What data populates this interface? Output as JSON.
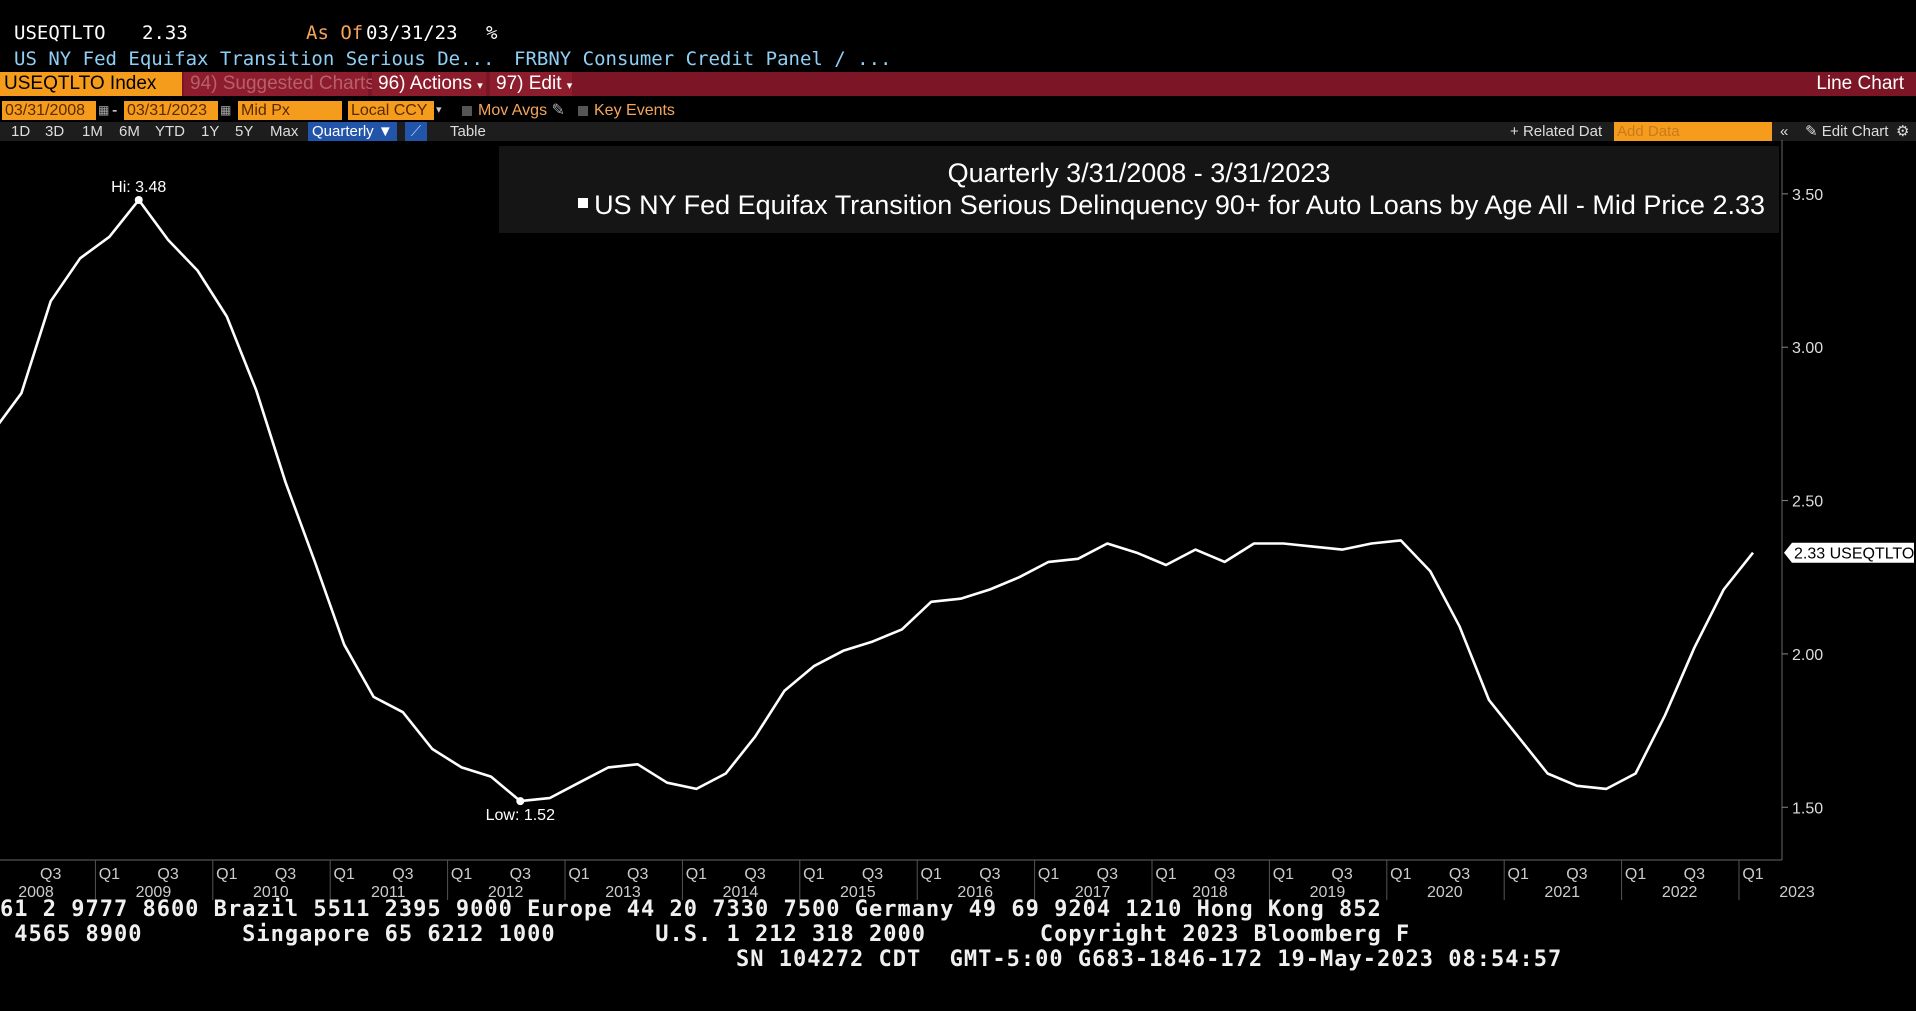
{
  "header": {
    "ticker": "USEQTLTO",
    "value": "2.33",
    "as_of_label": "As Of",
    "as_of_date": "03/31/23",
    "unit": "%",
    "description": "US NY Fed Equifax Transition Serious De...",
    "source": "FRBNY Consumer Credit Panel / ..."
  },
  "toolbar": {
    "index": "USEQTLTO Index",
    "suggested": "94) Suggested Charts",
    "actions": "96) Actions",
    "edit": "97) Edit",
    "chart_type": "Line Chart"
  },
  "controls": {
    "start_date": "03/31/2008",
    "end_date": "03/31/2023",
    "separator": "-",
    "price_field": "Mid Px",
    "currency": "Local CCY",
    "mov_avgs": "Mov Avgs",
    "key_events": "Key Events"
  },
  "ranges": {
    "buttons": [
      "1D",
      "3D",
      "1M",
      "6M",
      "YTD",
      "1Y",
      "5Y",
      "Max"
    ],
    "period": "Quarterly",
    "table": "Table",
    "related": "Related Dat",
    "add_data_placeholder": "Add Data",
    "edit_chart": "Edit Chart"
  },
  "legend": {
    "title": "Quarterly 3/31/2008 - 3/31/2023",
    "series": "US NY Fed Equifax Transition Serious Delinquency 90+ for Auto Loans by Age All - Mid Price",
    "last": "2.33"
  },
  "chart_data": {
    "type": "line",
    "series": [
      {
        "name": "US NY Fed Equifax Transition Serious Delinquency 90+ for Auto Loans by Age All - Mid Price",
        "x": [
          "2008Q1",
          "2008Q2",
          "2008Q3",
          "2008Q4",
          "2009Q1",
          "2009Q2",
          "2009Q3",
          "2009Q4",
          "2010Q1",
          "2010Q2",
          "2010Q3",
          "2010Q4",
          "2011Q1",
          "2011Q2",
          "2011Q3",
          "2011Q4",
          "2012Q1",
          "2012Q2",
          "2012Q3",
          "2012Q4",
          "2013Q1",
          "2013Q2",
          "2013Q3",
          "2013Q4",
          "2014Q1",
          "2014Q2",
          "2014Q3",
          "2014Q4",
          "2015Q1",
          "2015Q2",
          "2015Q3",
          "2015Q4",
          "2016Q1",
          "2016Q2",
          "2016Q3",
          "2016Q4",
          "2017Q1",
          "2017Q2",
          "2017Q3",
          "2017Q4",
          "2018Q1",
          "2018Q2",
          "2018Q3",
          "2018Q4",
          "2019Q1",
          "2019Q2",
          "2019Q3",
          "2019Q4",
          "2020Q1",
          "2020Q2",
          "2020Q3",
          "2020Q4",
          "2021Q1",
          "2021Q2",
          "2021Q3",
          "2021Q4",
          "2022Q1",
          "2022Q2",
          "2022Q3",
          "2022Q4",
          "2023Q1"
        ],
        "values": [
          2.72,
          2.85,
          3.15,
          3.29,
          3.36,
          3.48,
          3.35,
          3.25,
          3.1,
          2.86,
          2.56,
          2.3,
          2.03,
          1.86,
          1.81,
          1.69,
          1.63,
          1.6,
          1.52,
          1.53,
          1.58,
          1.63,
          1.64,
          1.58,
          1.56,
          1.61,
          1.73,
          1.88,
          1.96,
          2.01,
          2.04,
          2.08,
          2.17,
          2.18,
          2.21,
          2.25,
          2.3,
          2.31,
          2.36,
          2.33,
          2.29,
          2.34,
          2.3,
          2.36,
          2.36,
          2.35,
          2.34,
          2.36,
          2.37,
          2.27,
          2.09,
          1.85,
          1.73,
          1.61,
          1.57,
          1.56,
          1.61,
          1.8,
          2.02,
          2.21,
          2.33
        ]
      }
    ],
    "ylim": [
      1.3,
      3.68
    ],
    "yticks": [
      "3.50",
      "3.00",
      "2.50",
      "2.00",
      "1.50"
    ],
    "ytick_values": [
      3.5,
      3.0,
      2.5,
      2.0,
      1.5
    ],
    "x_quarter_labels": [
      "Q3",
      "Q1",
      "Q3",
      "Q1",
      "Q3",
      "Q1",
      "Q3",
      "Q1",
      "Q3",
      "Q1",
      "Q3",
      "Q1",
      "Q3",
      "Q1",
      "Q3",
      "Q1",
      "Q3",
      "Q1",
      "Q3",
      "Q1",
      "Q3",
      "Q1",
      "Q3",
      "Q1",
      "Q3",
      "Q1",
      "Q3",
      "Q1",
      "Q3",
      "Q1"
    ],
    "x_quarter_index": [
      2,
      4,
      6,
      8,
      10,
      12,
      14,
      16,
      18,
      20,
      22,
      24,
      26,
      28,
      30,
      32,
      34,
      36,
      38,
      40,
      42,
      44,
      46,
      48,
      50,
      52,
      54,
      56,
      58,
      60
    ],
    "x_year_labels": [
      "2008",
      "2009",
      "2010",
      "2011",
      "2012",
      "2013",
      "2014",
      "2015",
      "2016",
      "2017",
      "2018",
      "2019",
      "2020",
      "2021",
      "2022",
      "2023"
    ],
    "hi_label": "Hi: 3.48",
    "hi_index": 5,
    "low_label": "Low: 1.52",
    "low_index": 18,
    "last_label": "2.33 USEQTLTO",
    "grid": false,
    "legend_position": "top"
  },
  "footer": {
    "line1": "61 2 9777 8600 Brazil 5511 2395 9000 Europe 44 20 7330 7500 Germany 49 69 9204 1210 Hong Kong 852",
    "line2": " 4565 8900       Singapore 65 6212 1000       U.S. 1 212 318 2000        Copyright 2023 Bloomberg F",
    "line3": "SN 104272 CDT  GMT-5:00 G683-1846-172 19-May-2023 08:54:57"
  }
}
